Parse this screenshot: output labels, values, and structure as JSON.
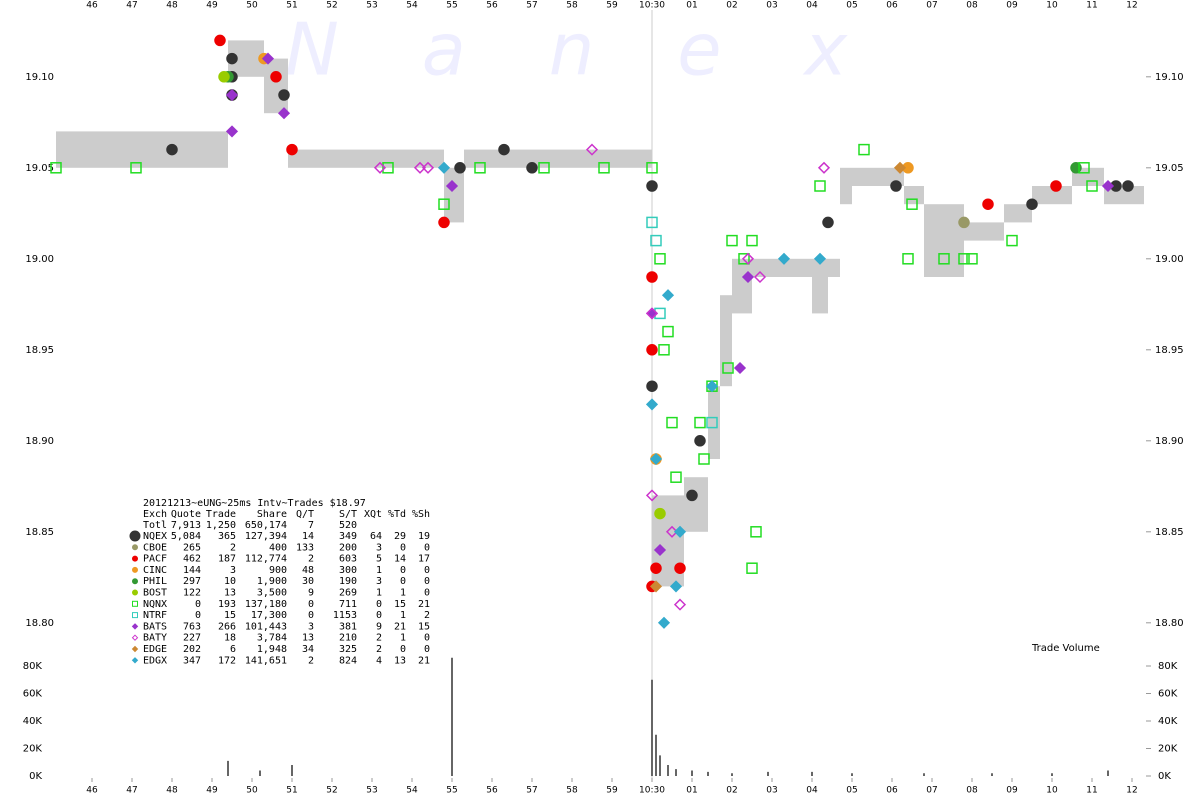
{
  "chart_data": [
    {
      "type": "scatter",
      "watermark": "N a n e x",
      "xlim": [
        45.1,
        72.3
      ],
      "xticks": [
        46,
        47,
        48,
        49,
        50,
        51,
        52,
        53,
        54,
        55,
        56,
        57,
        58,
        59,
        {
          "value": 60,
          "label": "10:30"
        },
        {
          "value": 61,
          "label": "01"
        },
        {
          "value": 62,
          "label": "02"
        },
        {
          "value": 63,
          "label": "03"
        },
        {
          "value": 64,
          "label": "04"
        },
        {
          "value": 65,
          "label": "05"
        },
        {
          "value": 66,
          "label": "06"
        },
        {
          "value": 67,
          "label": "07"
        },
        {
          "value": 68,
          "label": "08"
        },
        {
          "value": 69,
          "label": "09"
        },
        {
          "value": 70,
          "label": "10"
        },
        {
          "value": 71,
          "label": "11"
        },
        {
          "value": 72,
          "label": "12"
        }
      ],
      "ylim": [
        18.79,
        19.14
      ],
      "yticks": [
        {
          "value": 18.8,
          "label": "18.80"
        },
        18.85,
        {
          "value": 18.9,
          "label": "18.90"
        },
        18.95,
        {
          "value": 19,
          "label": "19.00"
        },
        19.05,
        {
          "value": 19.1,
          "label": "19.10"
        }
      ],
      "nbbo": {
        "color": "#cccccc",
        "x": [
          45.1,
          49.4,
          50.3,
          50.9,
          54.8,
          55.3,
          60.0,
          60.8,
          61.4,
          61.7,
          62.0,
          62.5,
          64.0,
          64.4,
          64.7,
          65.0,
          66.3,
          66.8,
          67.8,
          68.8,
          69.5,
          70.5,
          71.3
        ],
        "bid": [
          19.05,
          19.1,
          19.08,
          19.05,
          19.02,
          19.05,
          18.82,
          18.85,
          18.89,
          18.93,
          18.97,
          18.99,
          18.97,
          18.99,
          19.03,
          19.04,
          19.03,
          18.99,
          19.01,
          19.02,
          19.03,
          19.04,
          19.03
        ],
        "ask": [
          19.07,
          19.12,
          19.11,
          19.06,
          19.05,
          19.06,
          18.87,
          18.88,
          18.93,
          18.98,
          19.0,
          19.0,
          19.0,
          19.0,
          19.05,
          19.05,
          19.04,
          19.03,
          19.02,
          19.03,
          19.04,
          19.05,
          19.04
        ]
      },
      "summary": {
        "title": "20121213~eUNG~25ms Intv~Trades $18.97",
        "columns": [
          "Exch",
          "Quote",
          "Trade",
          "Share",
          "Q/T",
          "S/T",
          "XQt",
          "%Td",
          "%Sh"
        ],
        "total": [
          "Totl",
          "7,913",
          "1,250",
          "650,174",
          "7",
          "520"
        ],
        "rows": [
          [
            "5,084",
            "365",
            "127,394",
            "14",
            "349",
            "64",
            "29",
            "19"
          ],
          [
            "265",
            "2",
            "400",
            "133",
            "200",
            "3",
            "0",
            "0"
          ],
          [
            "462",
            "187",
            "112,774",
            "2",
            "603",
            "5",
            "14",
            "17"
          ],
          [
            "144",
            "3",
            "900",
            "48",
            "300",
            "1",
            "0",
            "0"
          ],
          [
            "297",
            "10",
            "1,900",
            "30",
            "190",
            "3",
            "0",
            "0"
          ],
          [
            "122",
            "13",
            "3,500",
            "9",
            "269",
            "1",
            "1",
            "0"
          ],
          [
            "0",
            "193",
            "137,180",
            "0",
            "711",
            "0",
            "15",
            "21"
          ],
          [
            "0",
            "15",
            "17,300",
            "0",
            "1153",
            "0",
            "1",
            "2"
          ],
          [
            "763",
            "266",
            "101,443",
            "3",
            "381",
            "9",
            "21",
            "15"
          ],
          [
            "227",
            "18",
            "3,784",
            "13",
            "210",
            "2",
            "1",
            "0"
          ],
          [
            "202",
            "6",
            "1,948",
            "34",
            "325",
            "2",
            "0",
            "0"
          ],
          [
            "347",
            "172",
            "141,651",
            "2",
            "824",
            "4",
            "13",
            "21"
          ]
        ]
      },
      "series": [
        {
          "name": "NQEX",
          "color": "#333333",
          "shape": "circle",
          "filled": true,
          "x": [
            48.0,
            49.5,
            49.5,
            49.5,
            50.8,
            55.2,
            56.3,
            57.0,
            60.0,
            60.0,
            61.0,
            61.2,
            64.4,
            66.1,
            69.5,
            71.6,
            71.9
          ],
          "values": [
            19.06,
            19.11,
            19.1,
            19.09,
            19.09,
            19.05,
            19.06,
            19.05,
            19.04,
            18.93,
            18.87,
            18.9,
            19.02,
            19.04,
            19.03,
            19.04,
            19.04
          ]
        },
        {
          "name": "CBOE",
          "color": "#999966",
          "shape": "circle",
          "filled": true,
          "x": [
            67.8
          ],
          "values": [
            19.02
          ]
        },
        {
          "name": "PACF",
          "color": "#ee0000",
          "shape": "circle",
          "filled": true,
          "x": [
            49.2,
            50.6,
            51.0,
            54.8,
            60.0,
            60.0,
            60.0,
            60.1,
            60.7,
            68.4,
            70.1
          ],
          "values": [
            19.12,
            19.1,
            19.06,
            19.02,
            18.99,
            18.95,
            18.82,
            18.83,
            18.83,
            19.03,
            19.04
          ]
        },
        {
          "name": "CINC",
          "color": "#ee9922",
          "shape": "circle",
          "filled": true,
          "x": [
            50.3,
            60.1,
            66.4
          ],
          "values": [
            19.11,
            18.89,
            19.05
          ]
        },
        {
          "name": "PHIL",
          "color": "#339933",
          "shape": "circle",
          "filled": true,
          "x": [
            49.4,
            70.6
          ],
          "values": [
            19.1,
            19.05
          ]
        },
        {
          "name": "BOST",
          "color": "#99cc00",
          "shape": "circle",
          "filled": true,
          "x": [
            49.3,
            60.2
          ],
          "values": [
            19.1,
            18.86
          ]
        },
        {
          "name": "NQNX",
          "color": "#22dd22",
          "shape": "square",
          "filled": false,
          "x": [
            45.1,
            47.1,
            53.4,
            54.8,
            55.7,
            57.3,
            58.8,
            60.0,
            60.2,
            60.3,
            60.4,
            60.5,
            60.6,
            61.2,
            61.3,
            61.5,
            61.9,
            62.0,
            62.3,
            62.5,
            62.6,
            62.5,
            64.2,
            65.3,
            66.5,
            66.4,
            67.3,
            67.8,
            68.0,
            69.0,
            70.8,
            71.0
          ],
          "values": [
            19.05,
            19.05,
            19.05,
            19.03,
            19.05,
            19.05,
            19.05,
            19.05,
            19.0,
            18.95,
            18.96,
            18.91,
            18.88,
            18.91,
            18.89,
            18.93,
            18.94,
            19.01,
            19.0,
            19.01,
            18.85,
            18.83,
            19.04,
            19.06,
            19.03,
            19.0,
            19.0,
            19.0,
            19.0,
            19.01,
            19.05,
            19.04
          ]
        },
        {
          "name": "NTRF",
          "color": "#33ccbb",
          "shape": "square",
          "filled": false,
          "x": [
            60.0,
            60.1,
            60.2,
            61.5
          ],
          "values": [
            19.02,
            19.01,
            18.97,
            18.91
          ]
        },
        {
          "name": "BATS",
          "color": "#9933cc",
          "shape": "diamond",
          "filled": true,
          "x": [
            49.5,
            49.5,
            50.4,
            50.8,
            55.0,
            60.0,
            60.2,
            62.4,
            62.2,
            71.4
          ],
          "values": [
            19.07,
            19.09,
            19.11,
            19.08,
            19.04,
            18.97,
            18.84,
            18.99,
            18.94,
            19.04
          ]
        },
        {
          "name": "BATY",
          "color": "#cc33cc",
          "shape": "diamond",
          "filled": false,
          "x": [
            53.2,
            54.2,
            54.4,
            58.5,
            60.0,
            60.0,
            60.5,
            60.7,
            62.4,
            62.7,
            64.3
          ],
          "values": [
            19.05,
            19.05,
            19.05,
            19.06,
            18.97,
            18.87,
            18.85,
            18.81,
            19.0,
            18.99,
            19.05
          ]
        },
        {
          "name": "EDGE",
          "color": "#cc8833",
          "shape": "diamond",
          "filled": true,
          "x": [
            66.2,
            60.1
          ],
          "values": [
            19.05,
            18.82
          ]
        },
        {
          "name": "EDGX",
          "color": "#33aacc",
          "shape": "diamond",
          "filled": true,
          "x": [
            54.8,
            60.0,
            60.1,
            60.3,
            60.6,
            60.7,
            61.5,
            63.3,
            64.2,
            60.4
          ],
          "values": [
            19.05,
            18.92,
            18.89,
            18.8,
            18.82,
            18.85,
            18.93,
            19.0,
            19.0,
            18.98
          ]
        }
      ]
    },
    {
      "type": "bar",
      "label": "Trade Volume",
      "color": "#666666",
      "xlim": [
        45.1,
        72.3
      ],
      "ylim": [
        0,
        88000
      ],
      "yticks": [
        {
          "value": 0,
          "label": "0K"
        },
        {
          "value": 20000,
          "label": "20K"
        },
        {
          "value": 40000,
          "label": "40K"
        },
        {
          "value": 60000,
          "label": "60K"
        },
        {
          "value": 80000,
          "label": "80K"
        }
      ],
      "x": [
        49.4,
        50.2,
        51.0,
        55.0,
        60.0,
        60.1,
        60.2,
        60.4,
        60.6,
        61.0,
        61.4,
        62.0,
        62.9,
        64.0,
        65.0,
        66.8,
        68.5,
        70.0,
        71.4
      ],
      "values": [
        11000,
        4000,
        8000,
        86000,
        70000,
        30000,
        15000,
        8000,
        5000,
        4000,
        3000,
        2000,
        3000,
        3000,
        2000,
        2000,
        2000,
        2000,
        4000
      ]
    }
  ]
}
